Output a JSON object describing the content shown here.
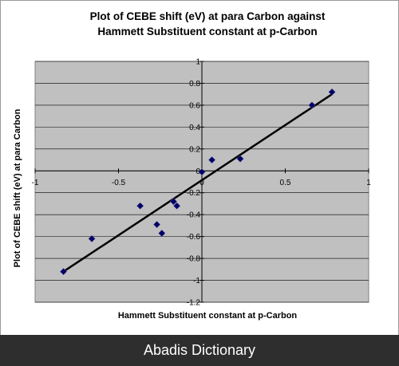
{
  "chart_data": {
    "type": "scatter",
    "title_lines": [
      "Plot of CEBE shift (eV) at para Carbon against",
      "Hammett Substituent constant at p-Carbon"
    ],
    "xlabel": "Hammett Substituent constant at p-Carbon",
    "ylabel": "Plot of CEBE shift (eV) at para Carbon",
    "xlim": [
      -1,
      1
    ],
    "ylim": [
      -1.2,
      1
    ],
    "xticks": [
      -1,
      -0.5,
      0,
      0.5,
      1
    ],
    "xtick_labels": [
      "-1",
      "-0.5",
      "0",
      "0.5",
      "1"
    ],
    "yticks": [
      1,
      0.8,
      0.6,
      0.4,
      0.2,
      0,
      -0.2,
      -0.4,
      -0.6,
      -0.8,
      -1,
      -1.2
    ],
    "ytick_labels": [
      "1",
      "0.8",
      "0.6",
      "0.4",
      "0.2",
      "0",
      "-0.2",
      "-0.4",
      "-0.6",
      "-0.8",
      "-1",
      "-1.2"
    ],
    "grid": "horizontal",
    "plot_background": "#c0c0c0",
    "marker_color": "#000066",
    "trendline_color": "#000000",
    "points": [
      {
        "x": -0.83,
        "y": -0.92
      },
      {
        "x": -0.66,
        "y": -0.62
      },
      {
        "x": -0.37,
        "y": -0.32
      },
      {
        "x": -0.27,
        "y": -0.49
      },
      {
        "x": -0.24,
        "y": -0.57
      },
      {
        "x": -0.17,
        "y": -0.28
      },
      {
        "x": -0.15,
        "y": -0.32
      },
      {
        "x": 0.0,
        "y": -0.01
      },
      {
        "x": 0.06,
        "y": 0.1
      },
      {
        "x": 0.23,
        "y": 0.11
      },
      {
        "x": 0.66,
        "y": 0.6
      },
      {
        "x": 0.78,
        "y": 0.72
      }
    ],
    "trendline": {
      "x": [
        -0.83,
        0.78
      ],
      "y": [
        -0.92,
        0.7
      ]
    }
  },
  "footer_text": "Abadis Dictionary"
}
